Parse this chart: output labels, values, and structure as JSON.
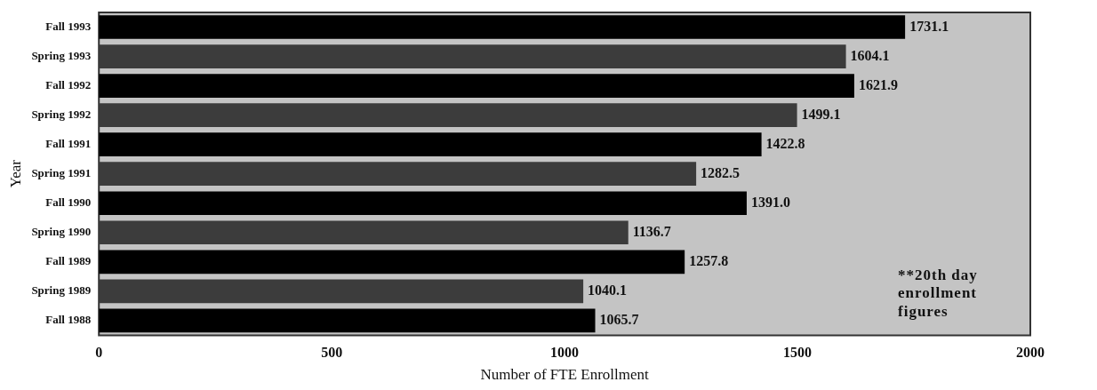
{
  "chart_data": {
    "type": "bar",
    "orientation": "horizontal",
    "categories": [
      "Fall 1993",
      "Spring 1993",
      "Fall 1992",
      "Spring 1992",
      "Fall 1991",
      "Spring 1991",
      "Fall 1990",
      "Spring 1990",
      "Fall 1989",
      "Spring 1989",
      "Fall 1988"
    ],
    "values": [
      1731.1,
      1604.1,
      1621.9,
      1499.1,
      1422.8,
      1282.5,
      1391.0,
      1136.7,
      1257.8,
      1040.1,
      1065.7
    ],
    "value_labels": [
      "1731.1",
      "1604.1",
      "1621.9",
      "1499.1",
      "1422.8",
      "1282.5",
      "1391.0",
      "1136.7",
      "1257.8",
      "1040.1",
      "1065.7"
    ],
    "colors": [
      "#000000",
      "#3c3c3c",
      "#000000",
      "#3c3c3c",
      "#000000",
      "#3c3c3c",
      "#000000",
      "#3c3c3c",
      "#000000",
      "#3c3c3c",
      "#000000"
    ],
    "xlim": [
      0,
      2000
    ],
    "xticks": [
      0,
      500,
      1000,
      1500,
      2000
    ],
    "xlabel": "Number of FTE Enrollment",
    "ylabel": "Year",
    "annotations": [
      "**20th day enrollment figures"
    ],
    "grid": false,
    "legend": false
  }
}
